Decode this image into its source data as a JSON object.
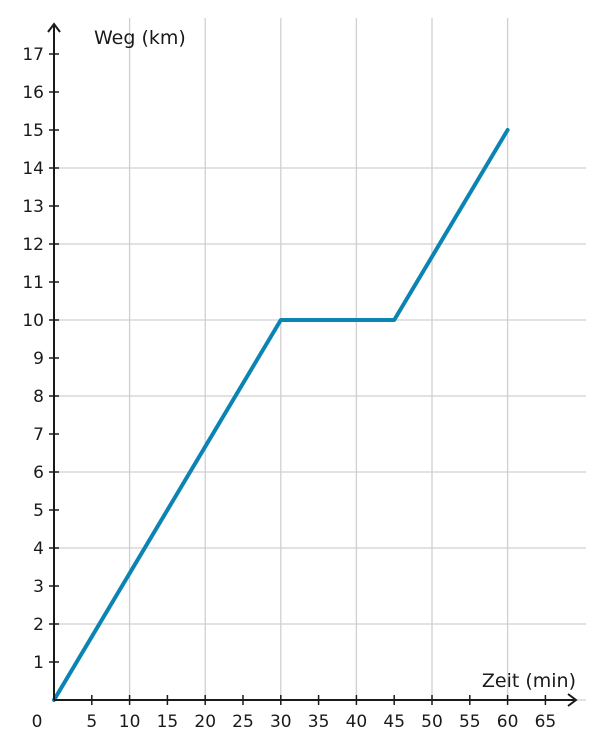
{
  "chart_data": {
    "type": "line",
    "xlabel": "Zeit (min)",
    "ylabel": "Weg (km)",
    "x_ticks": [
      5,
      10,
      15,
      20,
      25,
      30,
      35,
      40,
      45,
      50,
      55,
      60,
      65
    ],
    "y_ticks": [
      1,
      2,
      3,
      4,
      5,
      6,
      7,
      8,
      9,
      10,
      11,
      12,
      13,
      14,
      15,
      16,
      17
    ],
    "origin_label": "0",
    "xlim": [
      0,
      70
    ],
    "ylim": [
      0,
      17.5
    ],
    "grid_x": [
      10,
      20,
      30,
      40,
      50,
      60
    ],
    "grid_y": [
      0,
      2,
      4,
      6,
      8,
      10,
      12,
      14
    ],
    "series": [
      {
        "x": [
          0,
          30,
          45,
          60
        ],
        "y": [
          0,
          10,
          10,
          15
        ]
      }
    ],
    "colors": {
      "line": "#0b84b4",
      "grid": "#d0d0d0",
      "axis": "#1a1a1a"
    }
  }
}
